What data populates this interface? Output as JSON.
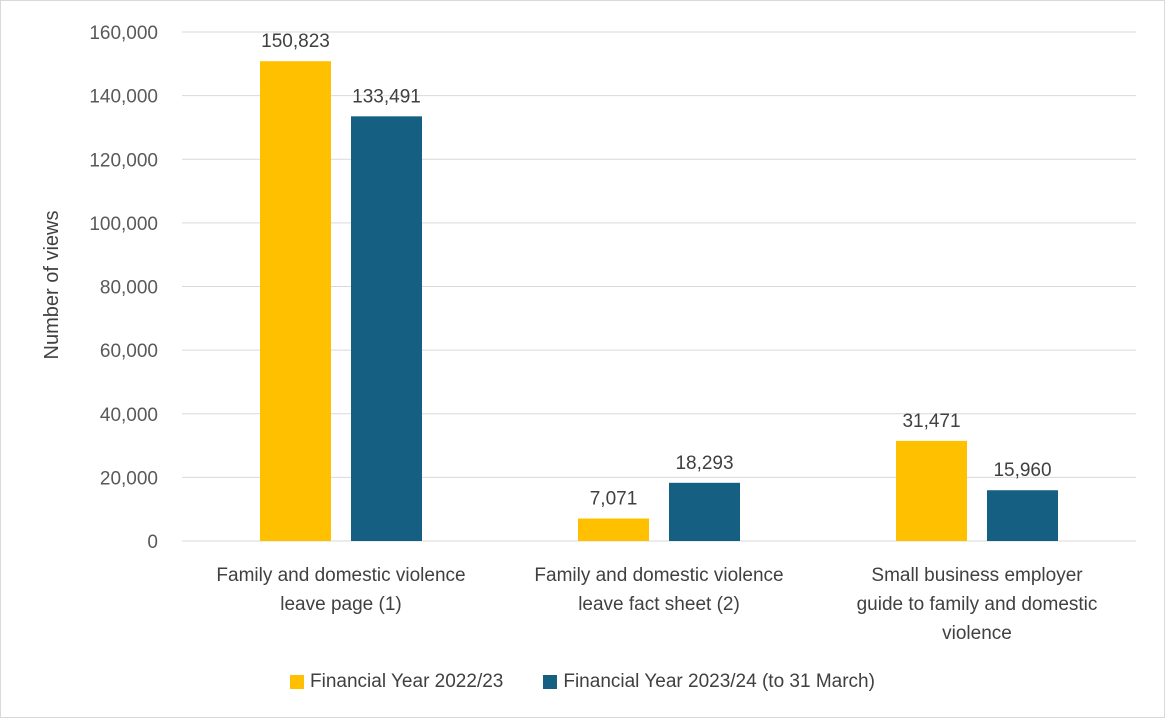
{
  "chart_data": {
    "type": "bar",
    "title": "",
    "xlabel": "",
    "ylabel": "Number of views",
    "ylim": [
      0,
      160000
    ],
    "yticks": [
      0,
      20000,
      40000,
      60000,
      80000,
      100000,
      120000,
      140000,
      160000
    ],
    "ytick_labels": [
      "0",
      "20,000",
      "40,000",
      "60,000",
      "80,000",
      "100,000",
      "120,000",
      "140,000",
      "160,000"
    ],
    "grid": true,
    "legend_position": "bottom",
    "categories": [
      [
        "Family and domestic violence",
        "leave page (1)"
      ],
      [
        "Family and domestic violence",
        "leave fact sheet (2)"
      ],
      [
        "Small business employer",
        "guide to family and domestic",
        "violence"
      ]
    ],
    "series": [
      {
        "name": "Financial Year 2022/23",
        "color": "#FFC000",
        "values": [
          150823,
          7071,
          31471
        ],
        "labels": [
          "150,823",
          "7,071",
          "31,471"
        ]
      },
      {
        "name": "Financial Year 2023/24 (to 31 March)",
        "color": "#156082",
        "values": [
          133491,
          18293,
          15960
        ],
        "labels": [
          "133,491",
          "18,293",
          "15,960"
        ]
      }
    ]
  }
}
